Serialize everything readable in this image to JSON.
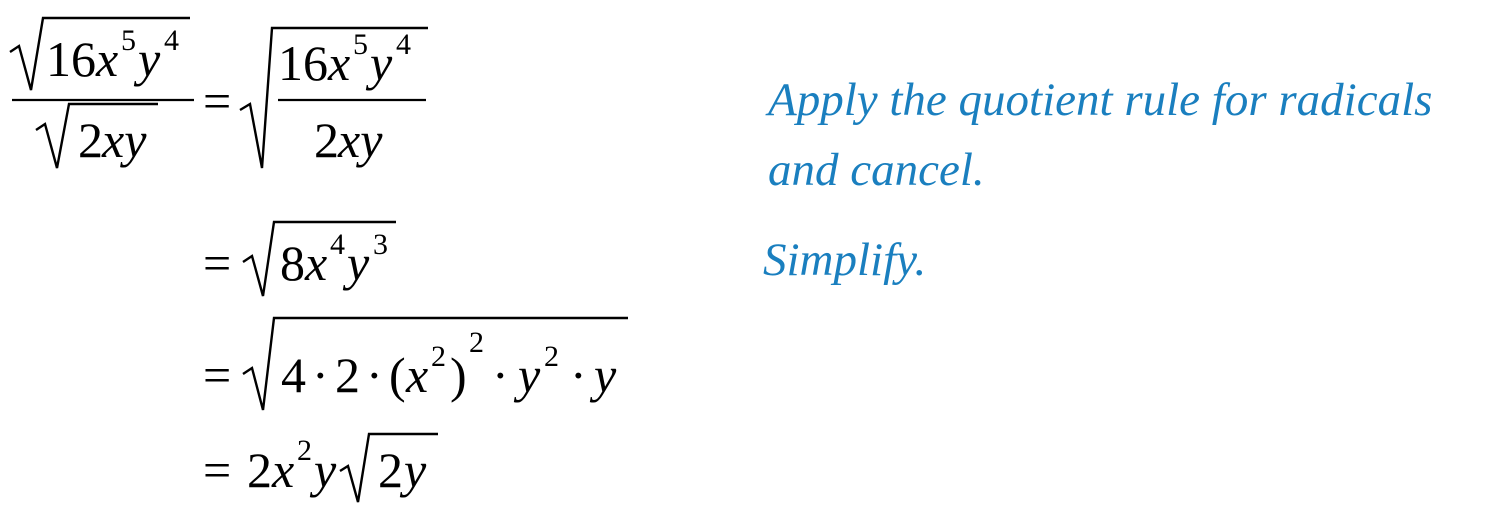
{
  "colors": {
    "math": "#000000",
    "annotation": "#1a7fbf",
    "background": "#ffffff"
  },
  "annotations": {
    "step1_line1": "Apply the quotient rule for radicals",
    "step1_line2": "and cancel.",
    "step2": "Simplify."
  },
  "math": {
    "equals": "=",
    "dot": "·",
    "lhs": {
      "num_coef": "16",
      "num_x": "x",
      "num_x_exp": "5",
      "num_y": "y",
      "num_y_exp": "4",
      "den_coef": "2",
      "den_vars": "xy"
    },
    "step1": {
      "num_coef": "16",
      "num_x": "x",
      "num_x_exp": "5",
      "num_y": "y",
      "num_y_exp": "4",
      "den_coef": "2",
      "den_vars": "xy"
    },
    "step2": {
      "coef": "8",
      "x": "x",
      "x_exp": "4",
      "y": "y",
      "y_exp": "3"
    },
    "step3": {
      "f1": "4",
      "f2": "2",
      "open_paren": "(",
      "x": "x",
      "x_exp": "2",
      "close_paren": ")",
      "paren_exp": "2",
      "y1": "y",
      "y1_exp": "2",
      "y2": "y"
    },
    "step4": {
      "coef": "2",
      "x": "x",
      "x_exp": "2",
      "y": "y",
      "rad_coef": "2",
      "rad_y": "y"
    }
  }
}
